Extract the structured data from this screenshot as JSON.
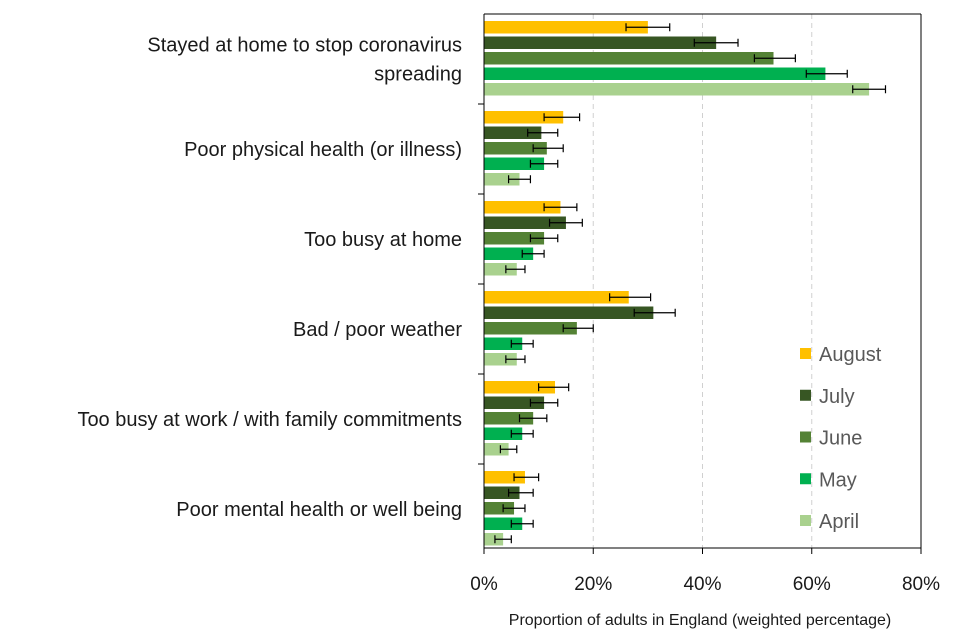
{
  "chart_data": {
    "type": "bar",
    "orientation": "horizontal",
    "title": "",
    "xlabel": "Proportion of adults in England (weighted percentage)",
    "ylabel": "",
    "xlim": [
      0,
      80
    ],
    "xticks": [
      0,
      20,
      40,
      60,
      80
    ],
    "xtick_labels": [
      "0%",
      "20%",
      "40%",
      "60%",
      "80%"
    ],
    "grid": "vertical dashed",
    "legend_position": "bottom-right",
    "categories": [
      [
        "Stayed at home to stop coronavirus",
        "spreading"
      ],
      [
        "Poor physical health (or illness)"
      ],
      [
        "Too busy at home"
      ],
      [
        "Bad / poor weather"
      ],
      [
        "Too busy at work / with family commitments"
      ],
      [
        "Poor mental health or well being"
      ]
    ],
    "series": [
      {
        "name": "August",
        "color": "#FFC000",
        "values": [
          30,
          14.5,
          14,
          26.5,
          13,
          7.5
        ],
        "err_low": [
          26,
          11,
          11,
          23,
          10,
          5.5
        ],
        "err_high": [
          34,
          17.5,
          17,
          30.5,
          15.5,
          10
        ]
      },
      {
        "name": "July",
        "color": "#375623",
        "values": [
          42.5,
          10.5,
          15,
          31,
          11,
          6.5
        ],
        "err_low": [
          38.5,
          8,
          12,
          27.5,
          8.5,
          4.5
        ],
        "err_high": [
          46.5,
          13.5,
          18,
          35,
          13.5,
          9
        ]
      },
      {
        "name": "June",
        "color": "#548235",
        "values": [
          53,
          11.5,
          11,
          17,
          9,
          5.5
        ],
        "err_low": [
          49.5,
          9,
          8.5,
          14.5,
          6.5,
          3.5
        ],
        "err_high": [
          57,
          14.5,
          13.5,
          20,
          11.5,
          7.5
        ]
      },
      {
        "name": "May",
        "color": "#00B050",
        "values": [
          62.5,
          11,
          9,
          7,
          7,
          7
        ],
        "err_low": [
          59,
          8.5,
          7,
          5,
          5,
          5
        ],
        "err_high": [
          66.5,
          13.5,
          11,
          9,
          9,
          9
        ]
      },
      {
        "name": "April",
        "color": "#A9D18E",
        "values": [
          70.5,
          6.5,
          6,
          6,
          4.5,
          3.5
        ],
        "err_low": [
          67.5,
          4.5,
          4,
          4,
          3,
          2
        ],
        "err_high": [
          73.5,
          8.5,
          7.5,
          7.5,
          6,
          5
        ]
      }
    ],
    "legend_order": [
      "August",
      "July",
      "June",
      "May",
      "April"
    ]
  }
}
